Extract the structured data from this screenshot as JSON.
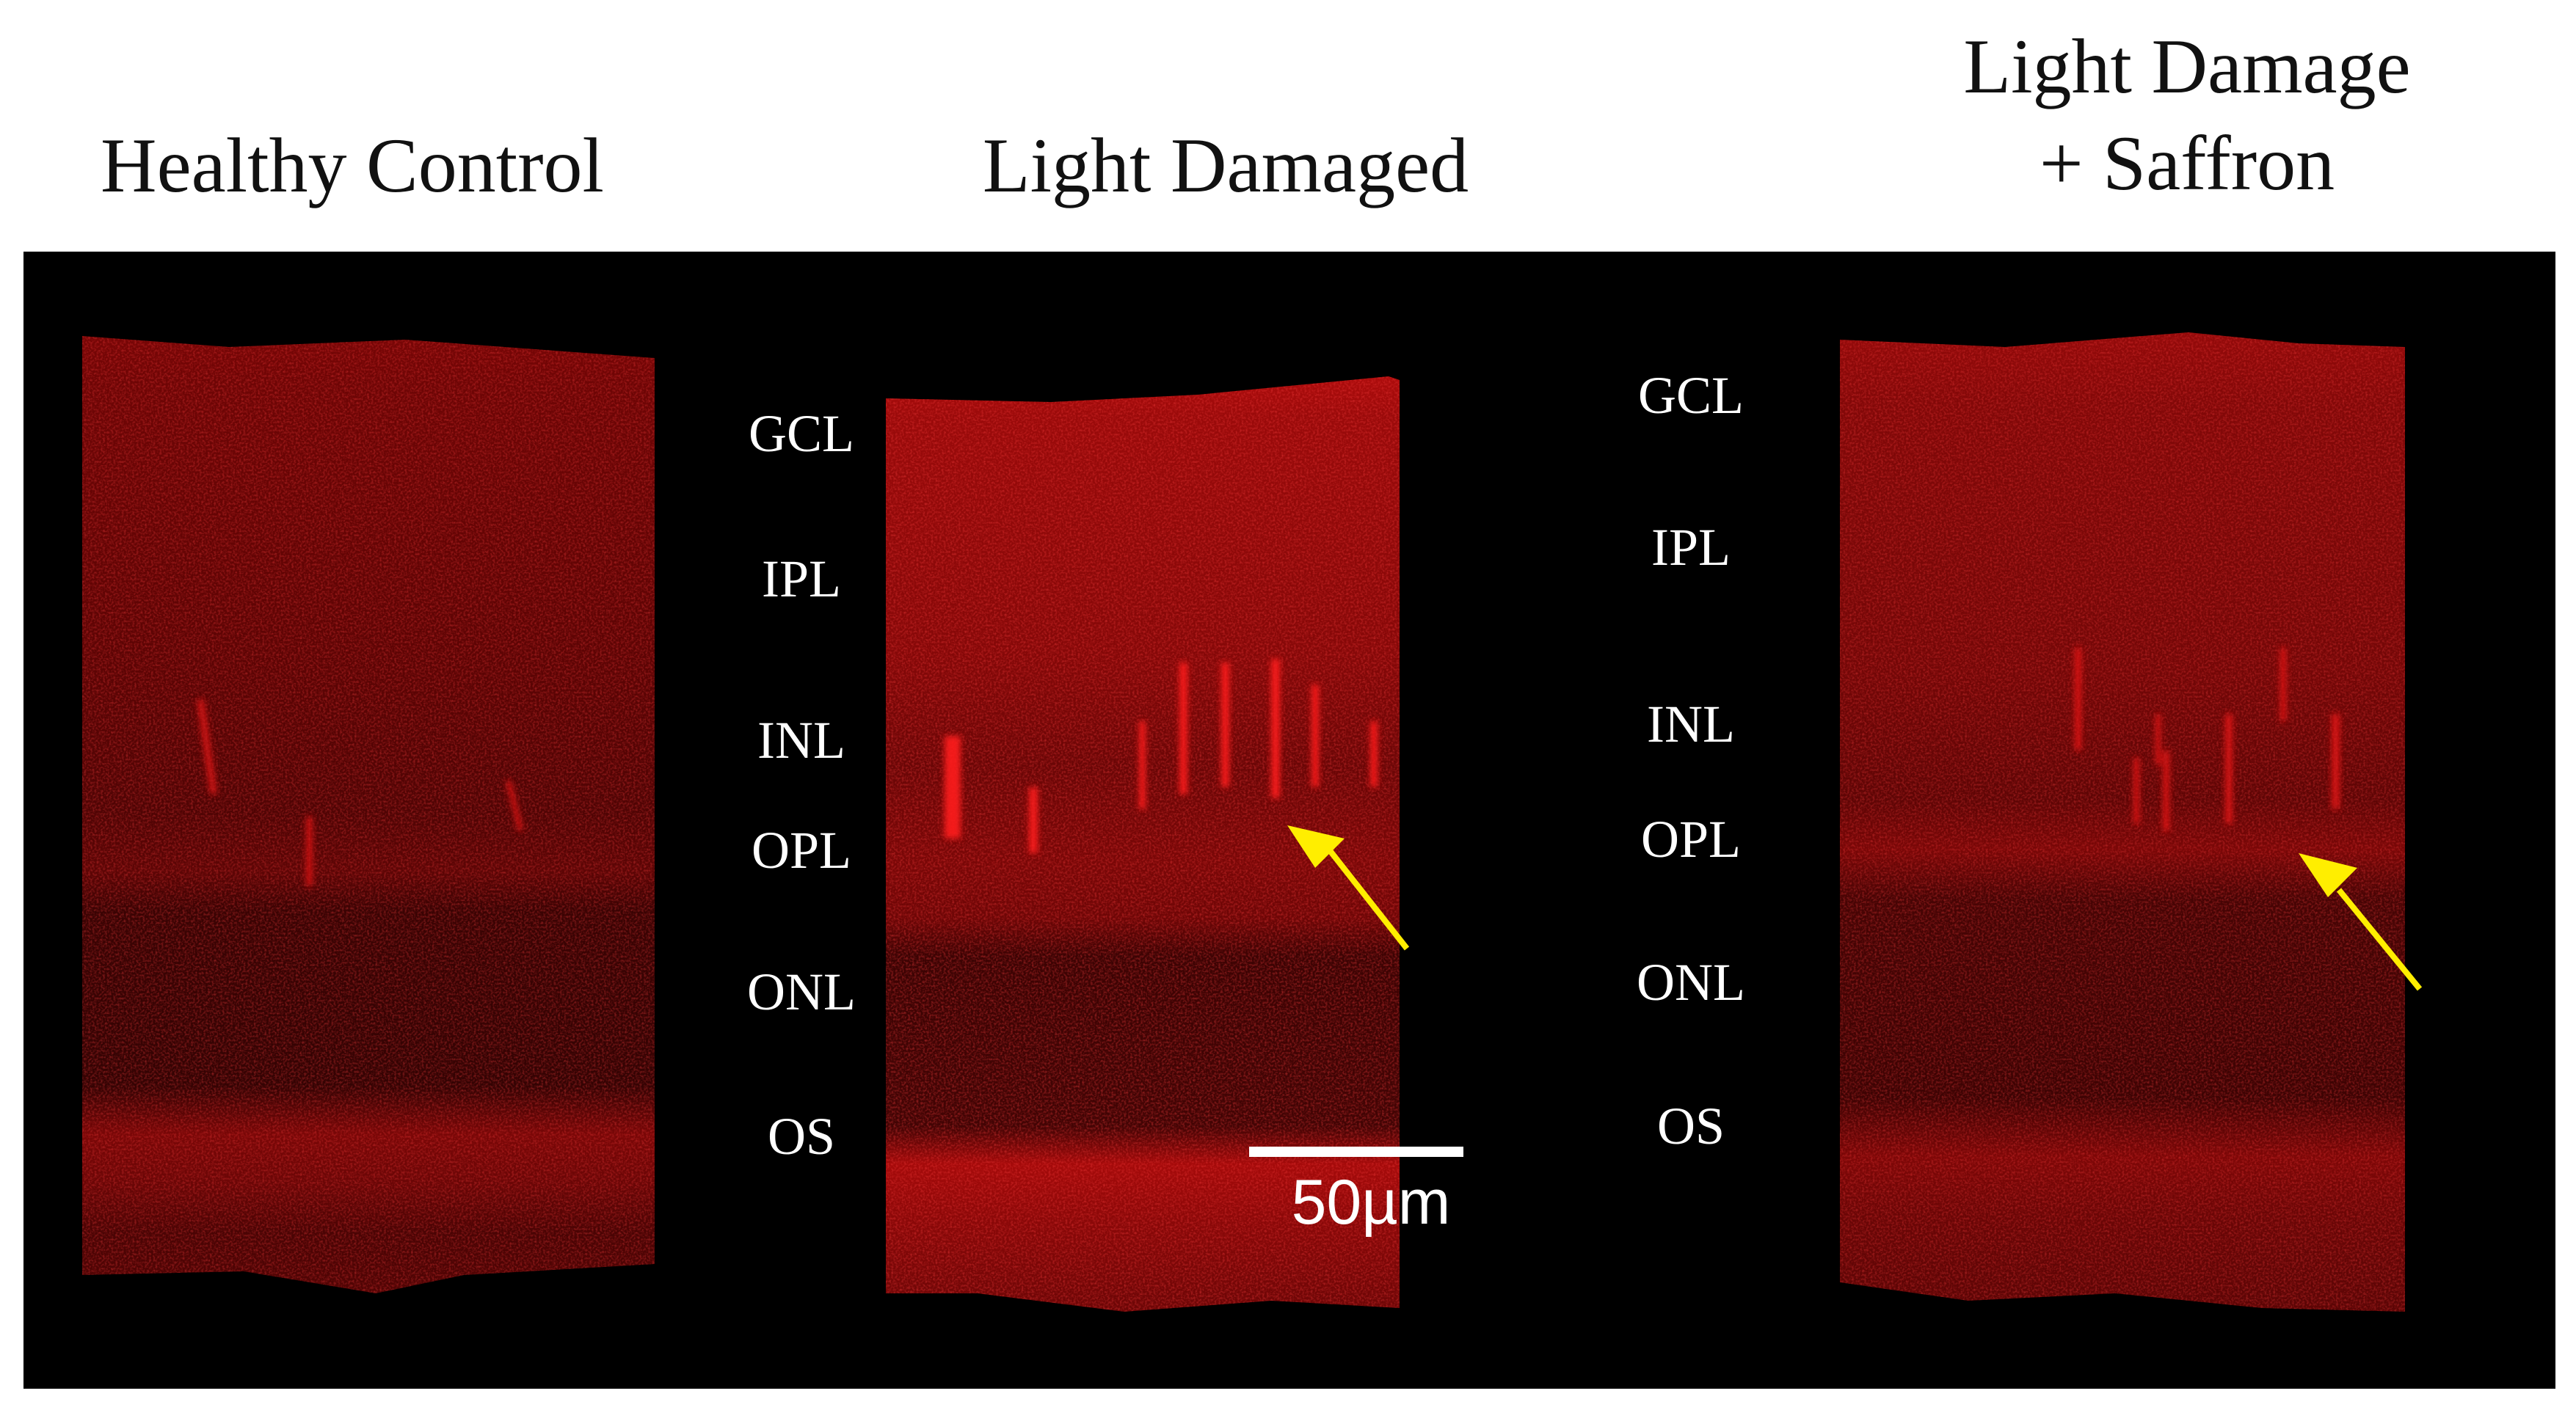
{
  "titles": {
    "panel1": "Healthy Control",
    "panel2": "Light Damaged",
    "panel3_line1": "Light Damage",
    "panel3_line2": "+ Saffron"
  },
  "layers": {
    "left_column": [
      "GCL",
      "IPL",
      "INL",
      "OPL",
      "ONL",
      "OS"
    ],
    "right_column": [
      "GCL",
      "IPL",
      "INL",
      "OPL",
      "ONL",
      "OS"
    ]
  },
  "scale_bar": {
    "label": "50µm"
  },
  "colors": {
    "background": "#000000",
    "stain": "#d01010",
    "arrow": "#ffee00",
    "label": "#ffffff"
  }
}
